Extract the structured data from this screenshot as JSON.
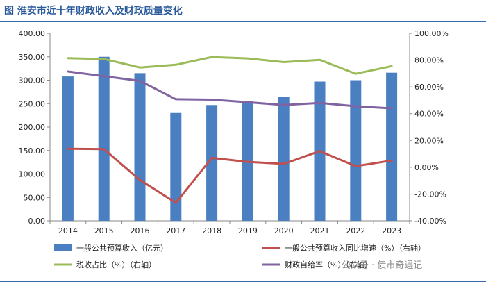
{
  "figure_title": "图   淮安市近十年财政收入及财政质量变化",
  "watermark": "公众号 · 债市奇遇记",
  "colors": {
    "bar": "#4a7fc1",
    "growth": "#c0504d",
    "tax": "#9bbb59",
    "self_sufficiency": "#8064a2",
    "title": "#2a5a9a",
    "rule": "#3a6ab0"
  },
  "chart_data": {
    "type": "bar",
    "categories": [
      "2014",
      "2015",
      "2016",
      "2017",
      "2018",
      "2019",
      "2020",
      "2021",
      "2022",
      "2023"
    ],
    "y_left": {
      "ylim": [
        0,
        400
      ],
      "ticks": [
        0,
        50,
        100,
        150,
        200,
        250,
        300,
        350,
        400
      ],
      "tick_labels": [
        "0.00",
        "50.00",
        "100.00",
        "150.00",
        "200.00",
        "250.00",
        "300.00",
        "350.00",
        "400.00"
      ]
    },
    "y_right": {
      "ylim": [
        -40,
        100
      ],
      "ticks": [
        -40,
        -20,
        0,
        20,
        40,
        60,
        80,
        100
      ],
      "tick_labels": [
        "-40.00%",
        "-20.00%",
        "0.00%",
        "20.00%",
        "40.00%",
        "60.00%",
        "80.00%",
        "100.00%"
      ]
    },
    "series": [
      {
        "name": "一般公共预算收入（亿元）",
        "kind": "bar",
        "axis": "left",
        "color_key": "bar",
        "values": [
          308,
          350,
          315,
          230,
          247,
          256,
          264,
          297,
          300,
          316
        ]
      },
      {
        "name": "一般公共预算收入同比增速（%）（右轴）",
        "kind": "line",
        "axis": "right",
        "color_key": "growth",
        "values": [
          13.8,
          13.5,
          -9.5,
          -26.5,
          7.0,
          4.0,
          2.5,
          12.0,
          0.8,
          5.0
        ]
      },
      {
        "name": "税收占比（%）（右轴）",
        "kind": "line",
        "axis": "right",
        "color_key": "tax",
        "values": [
          81.5,
          80.8,
          74.5,
          76.5,
          82.3,
          81.3,
          78.5,
          80.2,
          69.8,
          75.5
        ]
      },
      {
        "name": "财政自给率（%）（右轴）",
        "kind": "line",
        "axis": "right",
        "color_key": "self_sufficiency",
        "values": [
          71.5,
          68.0,
          64.5,
          50.8,
          50.5,
          48.5,
          46.5,
          48.0,
          45.5,
          44.0
        ]
      }
    ]
  }
}
